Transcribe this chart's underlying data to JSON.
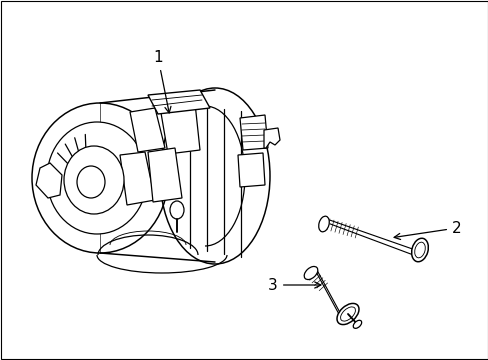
{
  "background_color": "#ffffff",
  "border_color": "#000000",
  "border_linewidth": 0.8,
  "label1": "1",
  "label2": "2",
  "label3": "3",
  "line_color": "#000000",
  "line_width": 0.9,
  "figsize": [
    4.89,
    3.6
  ],
  "dpi": 100
}
